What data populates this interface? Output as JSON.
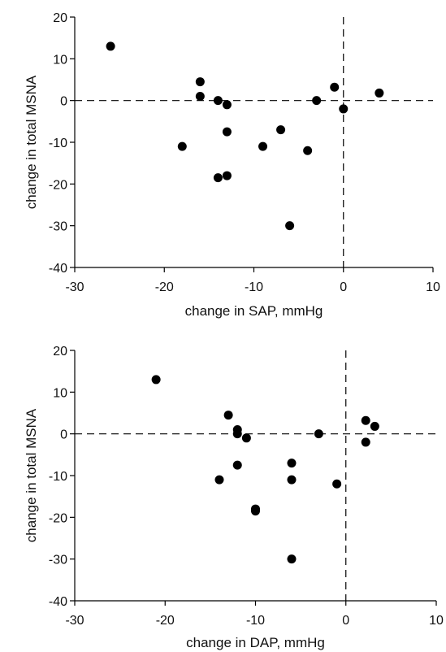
{
  "chart_data": [
    {
      "type": "scatter",
      "title": "",
      "xlabel": "change in SAP, mmHg",
      "ylabel": "change in total MSNA",
      "xlim": [
        -30,
        10
      ],
      "ylim": [
        -40,
        20
      ],
      "xticks": [
        -30,
        -20,
        -10,
        0,
        10
      ],
      "yticks": [
        -40,
        -30,
        -20,
        -10,
        0,
        10,
        20
      ],
      "reference_lines": {
        "x": 0,
        "y": 0,
        "style": "dashed"
      },
      "grid": false,
      "series": [
        {
          "points": [
            [
              -26,
              13
            ],
            [
              -16,
              4.5
            ],
            [
              -16,
              1
            ],
            [
              -14,
              0
            ],
            [
              -13,
              -1
            ],
            [
              -18,
              -11
            ],
            [
              -13,
              -7.5
            ],
            [
              -14,
              -18.5
            ],
            [
              -13,
              -18
            ],
            [
              -9,
              -11
            ],
            [
              -7,
              -7
            ],
            [
              -6,
              -30
            ],
            [
              -4,
              -12
            ],
            [
              -3,
              0
            ],
            [
              -1,
              3.2
            ],
            [
              0,
              -2
            ],
            [
              4,
              1.8
            ]
          ]
        }
      ]
    },
    {
      "type": "scatter",
      "title": "",
      "xlabel": "change in DAP, mmHg",
      "ylabel": "change in total MSNA",
      "xlim": [
        -30,
        10
      ],
      "ylim": [
        -40,
        20
      ],
      "xticks": [
        -30,
        -20,
        -10,
        0,
        10
      ],
      "yticks": [
        -40,
        -30,
        -20,
        -10,
        0,
        10,
        20
      ],
      "reference_lines": {
        "x": 0,
        "y": 0,
        "style": "dashed"
      },
      "grid": false,
      "series": [
        {
          "points": [
            [
              -21,
              13
            ],
            [
              -13,
              4.5
            ],
            [
              -12,
              1
            ],
            [
              -12,
              0
            ],
            [
              -11,
              -1
            ],
            [
              -14,
              -11
            ],
            [
              -12,
              -7.5
            ],
            [
              -10,
              -18
            ],
            [
              -10,
              -18.5
            ],
            [
              -6,
              -7
            ],
            [
              -6,
              -11
            ],
            [
              -6,
              -30
            ],
            [
              -3,
              0
            ],
            [
              -1,
              -12
            ],
            [
              2.2,
              3.2
            ],
            [
              2.2,
              -2
            ],
            [
              3.2,
              1.8
            ]
          ]
        }
      ]
    }
  ]
}
